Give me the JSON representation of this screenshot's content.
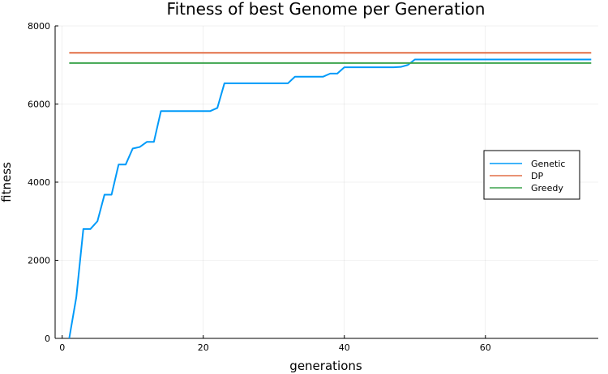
{
  "chart_data": {
    "type": "line",
    "title": "Fitness of best Genome per Generation",
    "xlabel": "generations",
    "ylabel": "fitness",
    "xlim": [
      -1,
      76
    ],
    "ylim": [
      0,
      8000
    ],
    "xticks": [
      0,
      20,
      40,
      60
    ],
    "yticks": [
      0,
      2000,
      4000,
      6000,
      8000
    ],
    "grid": true,
    "legend_position": "right",
    "series": [
      {
        "name": "Genetic",
        "color": "#009AF9",
        "x": [
          1,
          2,
          3,
          4,
          5,
          6,
          7,
          8,
          9,
          10,
          11,
          12,
          13,
          14,
          15,
          16,
          17,
          18,
          19,
          20,
          21,
          22,
          23,
          24,
          25,
          26,
          27,
          28,
          29,
          30,
          31,
          32,
          33,
          34,
          35,
          36,
          37,
          38,
          39,
          40,
          41,
          42,
          43,
          44,
          45,
          46,
          47,
          48,
          49,
          50,
          51,
          52,
          53,
          54,
          55,
          56,
          57,
          58,
          59,
          60,
          61,
          62,
          63,
          64,
          65,
          66,
          67,
          68,
          69,
          70,
          71,
          72,
          73,
          74,
          75
        ],
        "y": [
          0,
          1050,
          2800,
          2800,
          3000,
          3680,
          3680,
          4450,
          4450,
          4860,
          4900,
          5030,
          5030,
          5820,
          5820,
          5820,
          5820,
          5820,
          5820,
          5820,
          5820,
          5900,
          6530,
          6530,
          6530,
          6530,
          6530,
          6530,
          6530,
          6530,
          6530,
          6530,
          6700,
          6700,
          6700,
          6700,
          6700,
          6780,
          6780,
          6940,
          6940,
          6940,
          6940,
          6940,
          6940,
          6940,
          6940,
          6950,
          7000,
          7140,
          7140,
          7140,
          7140,
          7140,
          7140,
          7140,
          7140,
          7140,
          7140,
          7140,
          7140,
          7140,
          7140,
          7140,
          7140,
          7140,
          7140,
          7140,
          7140,
          7140,
          7140,
          7140,
          7140,
          7140,
          7140
        ]
      },
      {
        "name": "DP",
        "color": "#E26F46",
        "x": [
          1,
          75
        ],
        "y": [
          7310,
          7310
        ]
      },
      {
        "name": "Greedy",
        "color": "#3DA44D",
        "x": [
          1,
          75
        ],
        "y": [
          7050,
          7050
        ]
      }
    ]
  }
}
